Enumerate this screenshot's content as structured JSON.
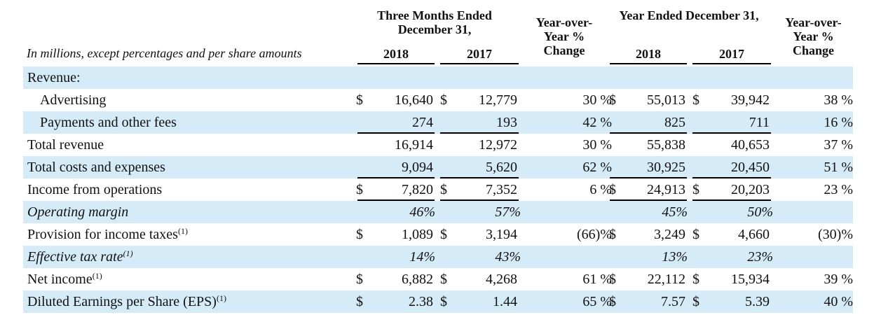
{
  "header": {
    "unit_note": "In millions, except percentages and per share amounts",
    "three_months": "Three Months Ended December 31,",
    "yoy_1": "Year-over-Year % Change",
    "year_ended": "Year Ended December 31,",
    "yoy_2": "Year-over-Year % Change",
    "years": [
      "2018",
      "2017",
      "2018",
      "2017"
    ]
  },
  "rows": [
    {
      "label": "Revenue:",
      "sup": "",
      "style": "plain",
      "shade": true,
      "indent": false,
      "cells": [
        "",
        "",
        "",
        "",
        "",
        "",
        "",
        "",
        "",
        "",
        ""
      ]
    },
    {
      "label": "Advertising",
      "sup": "",
      "style": "plain",
      "shade": false,
      "indent": true,
      "cells": [
        "$",
        "16,640",
        "$",
        "12,779",
        "30 %",
        "$",
        "55,013",
        "$",
        "39,942",
        "38 %"
      ]
    },
    {
      "label": "Payments and other fees",
      "sup": "",
      "style": "plain",
      "shade": true,
      "indent": true,
      "cells": [
        "",
        "274",
        "",
        "193",
        "42 %",
        "",
        "825",
        "",
        "711",
        "16 %"
      ]
    },
    {
      "label": "Total revenue",
      "sup": "",
      "style": "plain",
      "shade": false,
      "indent": false,
      "cells": [
        "",
        "16,914",
        "",
        "12,972",
        "30 %",
        "",
        "55,838",
        "",
        "40,653",
        "37 %"
      ]
    },
    {
      "label": "Total costs and expenses",
      "sup": "",
      "style": "plain",
      "shade": true,
      "indent": false,
      "cells": [
        "",
        "9,094",
        "",
        "5,620",
        "62 %",
        "",
        "30,925",
        "",
        "20,450",
        "51 %"
      ]
    },
    {
      "label": "Income from operations",
      "sup": "",
      "style": "plain",
      "shade": false,
      "indent": false,
      "cells": [
        "$",
        "7,820",
        "$",
        "7,352",
        "6 %",
        "$",
        "24,913",
        "$",
        "20,203",
        "23 %"
      ]
    },
    {
      "label": "Operating margin",
      "sup": "",
      "style": "italic",
      "shade": true,
      "indent": false,
      "cells": [
        "",
        "46%",
        "",
        "57%",
        "",
        "",
        "45%",
        "",
        "50%",
        ""
      ]
    },
    {
      "label": "Provision for income taxes",
      "sup": "(1)",
      "style": "plain",
      "shade": false,
      "indent": false,
      "cells": [
        "$",
        "1,089",
        "$",
        "3,194",
        "(66)%",
        "$",
        "3,249",
        "$",
        "4,660",
        "(30)%"
      ]
    },
    {
      "label": "Effective tax rate",
      "sup": "(1)",
      "style": "italic",
      "shade": true,
      "indent": false,
      "cells": [
        "",
        "14%",
        "",
        "43%",
        "",
        "",
        "13%",
        "",
        "23%",
        ""
      ]
    },
    {
      "label": "Net income",
      "sup": "(1)",
      "style": "plain",
      "shade": false,
      "indent": false,
      "cells": [
        "$",
        "6,882",
        "$",
        "4,268",
        "61 %",
        "$",
        "22,112",
        "$",
        "15,934",
        "39 %"
      ]
    },
    {
      "label": "Diluted Earnings per Share (EPS)",
      "sup": "(1)",
      "style": "plain",
      "shade": true,
      "indent": false,
      "cells": [
        "$",
        "2.38",
        "$",
        "1.44",
        "65 %",
        "$",
        "7.57",
        "$",
        "5.39",
        "40 %"
      ]
    }
  ]
}
